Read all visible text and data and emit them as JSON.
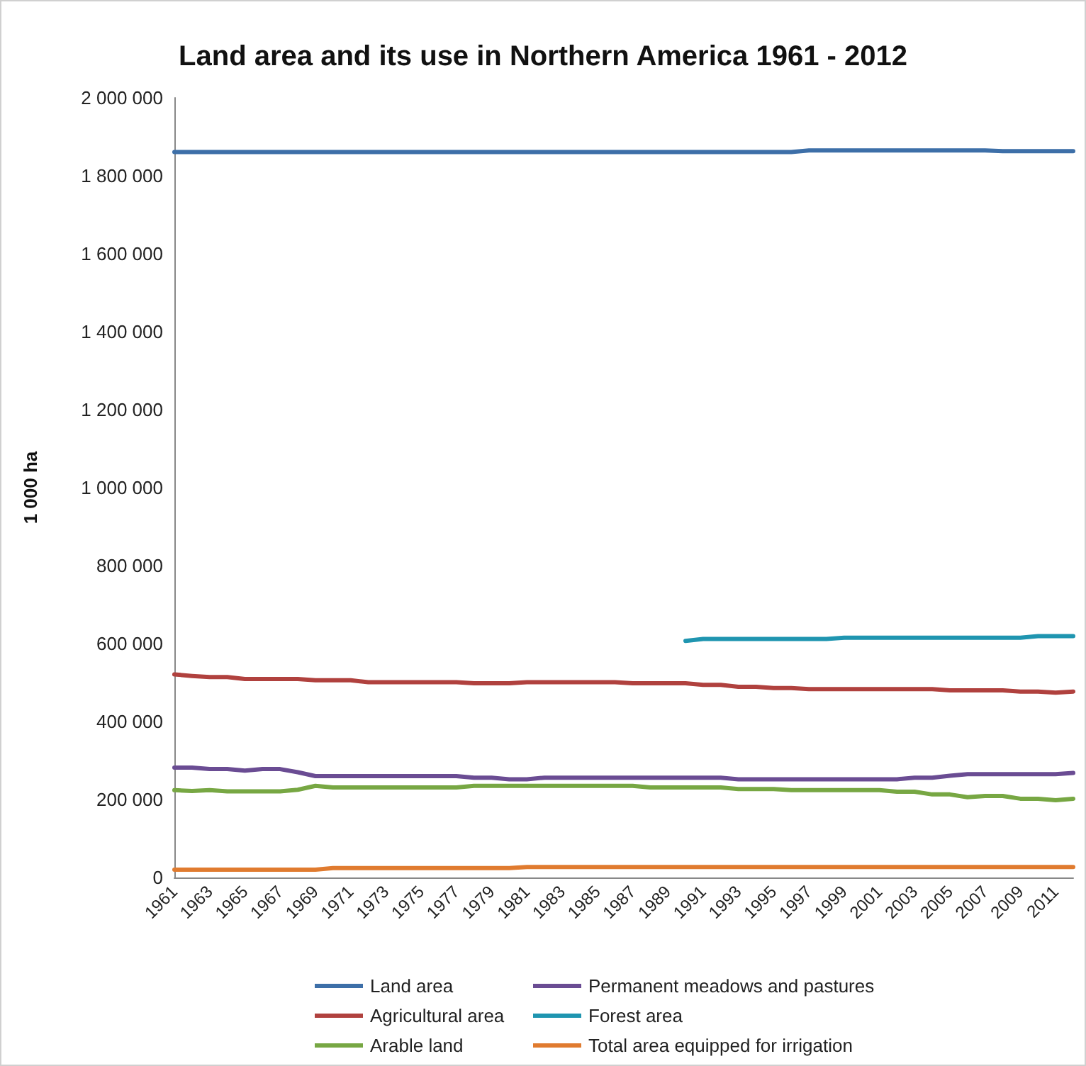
{
  "chart_data": {
    "type": "line",
    "title": "Land area and its use in Northern America 1961 - 2012",
    "ylabel": "1 000 ha",
    "categories": [
      "1961",
      null,
      "1963",
      null,
      "1965",
      null,
      "1967",
      null,
      "1969",
      null,
      "1971",
      null,
      "1973",
      null,
      "1975",
      null,
      "1977",
      null,
      "1979",
      null,
      "1981",
      null,
      "1983",
      null,
      "1985",
      null,
      "1987",
      null,
      "1989",
      null,
      "1991",
      null,
      "1993",
      null,
      "1995",
      null,
      "1997",
      null,
      "1999",
      null,
      "2001",
      null,
      "2003",
      null,
      "2005",
      null,
      "2007",
      null,
      "2009",
      null,
      "2011",
      null
    ],
    "series": [
      {
        "name": "Land area",
        "color": "#3d6fa8",
        "values": [
          1861000,
          1861000,
          1861000,
          1861000,
          1861000,
          1861000,
          1861000,
          1861000,
          1861000,
          1861000,
          1861000,
          1861000,
          1861000,
          1861000,
          1861000,
          1861000,
          1861000,
          1861000,
          1861000,
          1861000,
          1861000,
          1861000,
          1861000,
          1861000,
          1861000,
          1861000,
          1861000,
          1861000,
          1861000,
          1861000,
          1861000,
          1861000,
          1861000,
          1861000,
          1861000,
          1861000,
          1865000,
          1865000,
          1865000,
          1865000,
          1865000,
          1865000,
          1865000,
          1865000,
          1865000,
          1865000,
          1865000,
          1863000,
          1863000,
          1863000,
          1863000,
          1863000
        ]
      },
      {
        "name": "Permanent meadows and pastures",
        "color": "#6a4c93",
        "values": [
          282000,
          282000,
          278000,
          278000,
          274000,
          278000,
          278000,
          270000,
          260000,
          260000,
          260000,
          260000,
          260000,
          260000,
          260000,
          260000,
          260000,
          256000,
          256000,
          252000,
          252000,
          256000,
          256000,
          256000,
          256000,
          256000,
          256000,
          256000,
          256000,
          256000,
          256000,
          256000,
          252000,
          252000,
          252000,
          252000,
          252000,
          252000,
          252000,
          252000,
          252000,
          252000,
          256000,
          256000,
          261000,
          265000,
          265000,
          265000,
          265000,
          265000,
          265000,
          268000
        ]
      },
      {
        "name": "Agricultural area",
        "color": "#b0413e",
        "values": [
          521000,
          517000,
          514000,
          514000,
          509000,
          509000,
          509000,
          509000,
          506000,
          506000,
          506000,
          501000,
          501000,
          501000,
          501000,
          501000,
          501000,
          498000,
          498000,
          498000,
          501000,
          501000,
          501000,
          501000,
          501000,
          501000,
          498000,
          498000,
          498000,
          498000,
          494000,
          494000,
          489000,
          489000,
          486000,
          486000,
          483000,
          483000,
          483000,
          483000,
          483000,
          483000,
          483000,
          483000,
          480000,
          480000,
          480000,
          480000,
          477000,
          477000,
          474000,
          477000
        ]
      },
      {
        "name": "Forest area",
        "color": "#1f95b0",
        "values": [
          null,
          null,
          null,
          null,
          null,
          null,
          null,
          null,
          null,
          null,
          null,
          null,
          null,
          null,
          null,
          null,
          null,
          null,
          null,
          null,
          null,
          null,
          null,
          null,
          null,
          null,
          null,
          null,
          null,
          607000,
          612000,
          612000,
          612000,
          612000,
          612000,
          612000,
          612000,
          612000,
          615000,
          615000,
          615000,
          615000,
          615000,
          615000,
          615000,
          615000,
          615000,
          615000,
          615000,
          619000,
          619000,
          619000
        ]
      },
      {
        "name": "Arable land",
        "color": "#77a743",
        "values": [
          224000,
          222000,
          224000,
          221000,
          221000,
          221000,
          221000,
          225000,
          235000,
          231000,
          231000,
          231000,
          231000,
          231000,
          231000,
          231000,
          231000,
          235000,
          235000,
          235000,
          235000,
          235000,
          235000,
          235000,
          235000,
          235000,
          235000,
          231000,
          231000,
          231000,
          231000,
          231000,
          227000,
          227000,
          227000,
          224000,
          224000,
          224000,
          224000,
          224000,
          224000,
          220000,
          220000,
          213000,
          213000,
          206000,
          209000,
          209000,
          202000,
          202000,
          198000,
          202000
        ]
      },
      {
        "name": "Total area equipped for irrigation",
        "color": "#e07b2f",
        "values": [
          20000,
          20000,
          20000,
          20000,
          20000,
          20000,
          20000,
          20000,
          20000,
          24000,
          24000,
          24000,
          24000,
          24000,
          24000,
          24000,
          24000,
          24000,
          24000,
          24000,
          27000,
          27000,
          27000,
          27000,
          27000,
          27000,
          27000,
          27000,
          27000,
          27000,
          27000,
          27000,
          27000,
          27000,
          27000,
          27000,
          27000,
          27000,
          27000,
          27000,
          27000,
          27000,
          27000,
          27000,
          27000,
          27000,
          27000,
          27000,
          27000,
          27000,
          27000,
          27000
        ]
      }
    ],
    "ylim": [
      0,
      2000000
    ],
    "yticks": [
      0,
      200000,
      400000,
      600000,
      800000,
      1000000,
      1200000,
      1400000,
      1600000,
      1800000,
      2000000
    ],
    "grid": false,
    "legend": "bottom",
    "marker": "none",
    "line_style": "solid"
  }
}
